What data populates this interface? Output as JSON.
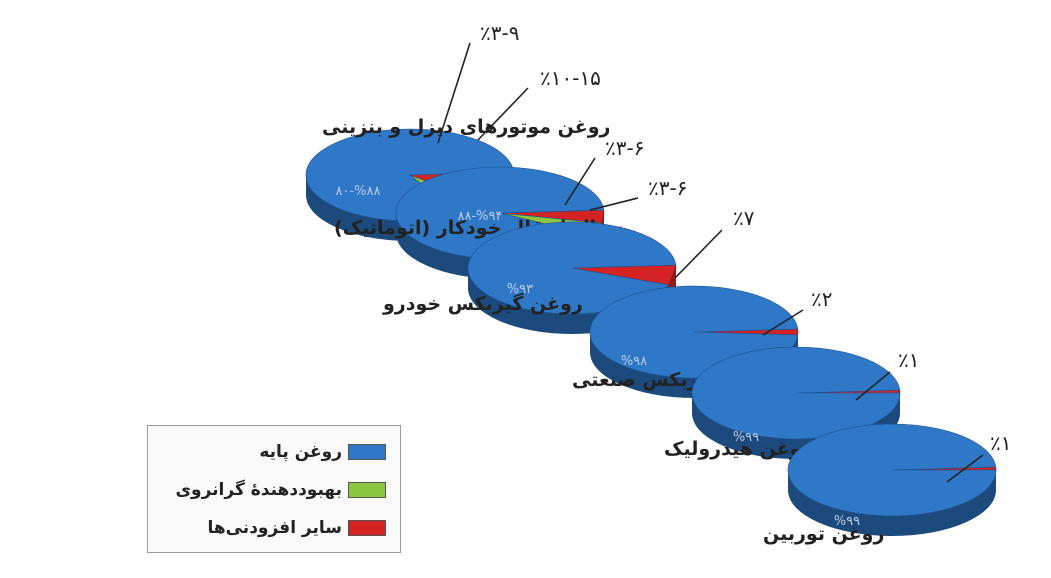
{
  "chart_data": {
    "type": "pie",
    "colors": {
      "base": "#2f78c8",
      "improver": "#8cc63f",
      "other": "#d32323"
    },
    "legend": [
      {
        "key": "base",
        "label": "روغن پایه"
      },
      {
        "key": "improver",
        "label": "بهبوددهندهٔ گرانروی"
      },
      {
        "key": "other",
        "label": "سایر افزودنی‌ها"
      }
    ],
    "pies": [
      {
        "name": "روغن موتورهای دیزل و بنزینی",
        "base_label": "۸۰-%۸۸",
        "base_value": 84,
        "improver_value": 6,
        "improver_label": "٪۳-۹",
        "other_value": 12.5,
        "other_label": "٪۱۰-۱۵"
      },
      {
        "name": "سیال انتقال خودکار (اتوماتیک)",
        "base_label": "۸۸-%۹۴",
        "base_value": 91,
        "improver_value": 4.5,
        "improver_label": "٪۳-۶",
        "other_value": 4.5,
        "other_label": "٪۳-۶"
      },
      {
        "name": "روغن گیربکس خودرو",
        "base_label": "%۹۳",
        "base_value": 93,
        "improver_value": 0,
        "improver_label": "",
        "other_value": 7,
        "other_label": "٪۷"
      },
      {
        "name": "روغن گیربکس صنعتی",
        "base_label": "%۹۸",
        "base_value": 98,
        "improver_value": 0,
        "improver_label": "",
        "other_value": 2,
        "other_label": "٪۲"
      },
      {
        "name": "روغن هیدرولیک",
        "base_label": "%۹۹",
        "base_value": 99,
        "improver_value": 0,
        "improver_label": "",
        "other_value": 1,
        "other_label": "٪۱"
      },
      {
        "name": "روغن توربین",
        "base_label": "%۹۹",
        "base_value": 99,
        "improver_value": 0,
        "improver_label": "",
        "other_value": 1,
        "other_label": "٪۱"
      }
    ]
  }
}
